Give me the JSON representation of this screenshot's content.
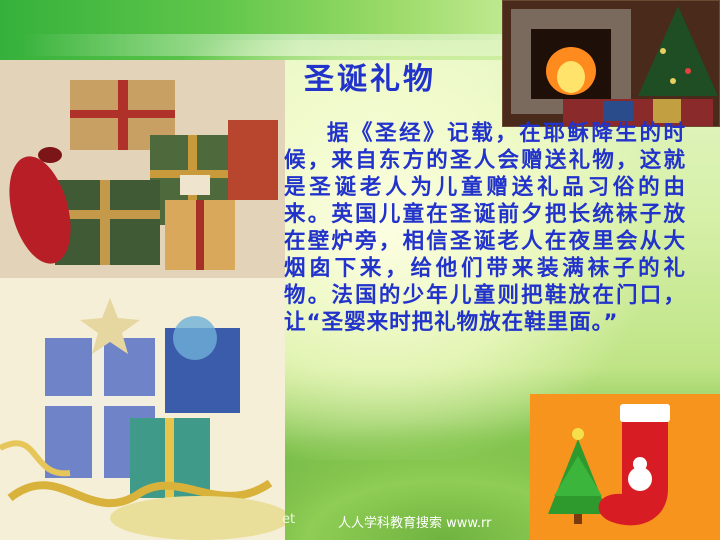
{
  "slide": {
    "title": "圣诞礼物",
    "body": "据《圣经》记载，在耶稣降生的时候，来自东方的圣人会赠送礼物，这就是圣诞老人为儿童赠送礼品习俗的由来。英国儿童在圣诞前夕把长统袜子放在壁炉旁，相信圣诞老人在夜里会从大烟囱下来，给他们带来装满袜子的礼物。法国的少年儿童则把鞋放在门口，让“圣婴来时把礼物放在鞋里面。”"
  },
  "footer": {
    "left_fragment": "et",
    "text": "人人学科教育搜索  www.rr"
  },
  "colors": {
    "title": "#2233cc",
    "background": "#d6f0a8",
    "accent_orange": "#f7941d"
  },
  "images": [
    "gift-boxes-photo",
    "ribbon-gifts-photo",
    "fireplace-tree-photo",
    "stocking-tree-photo"
  ]
}
